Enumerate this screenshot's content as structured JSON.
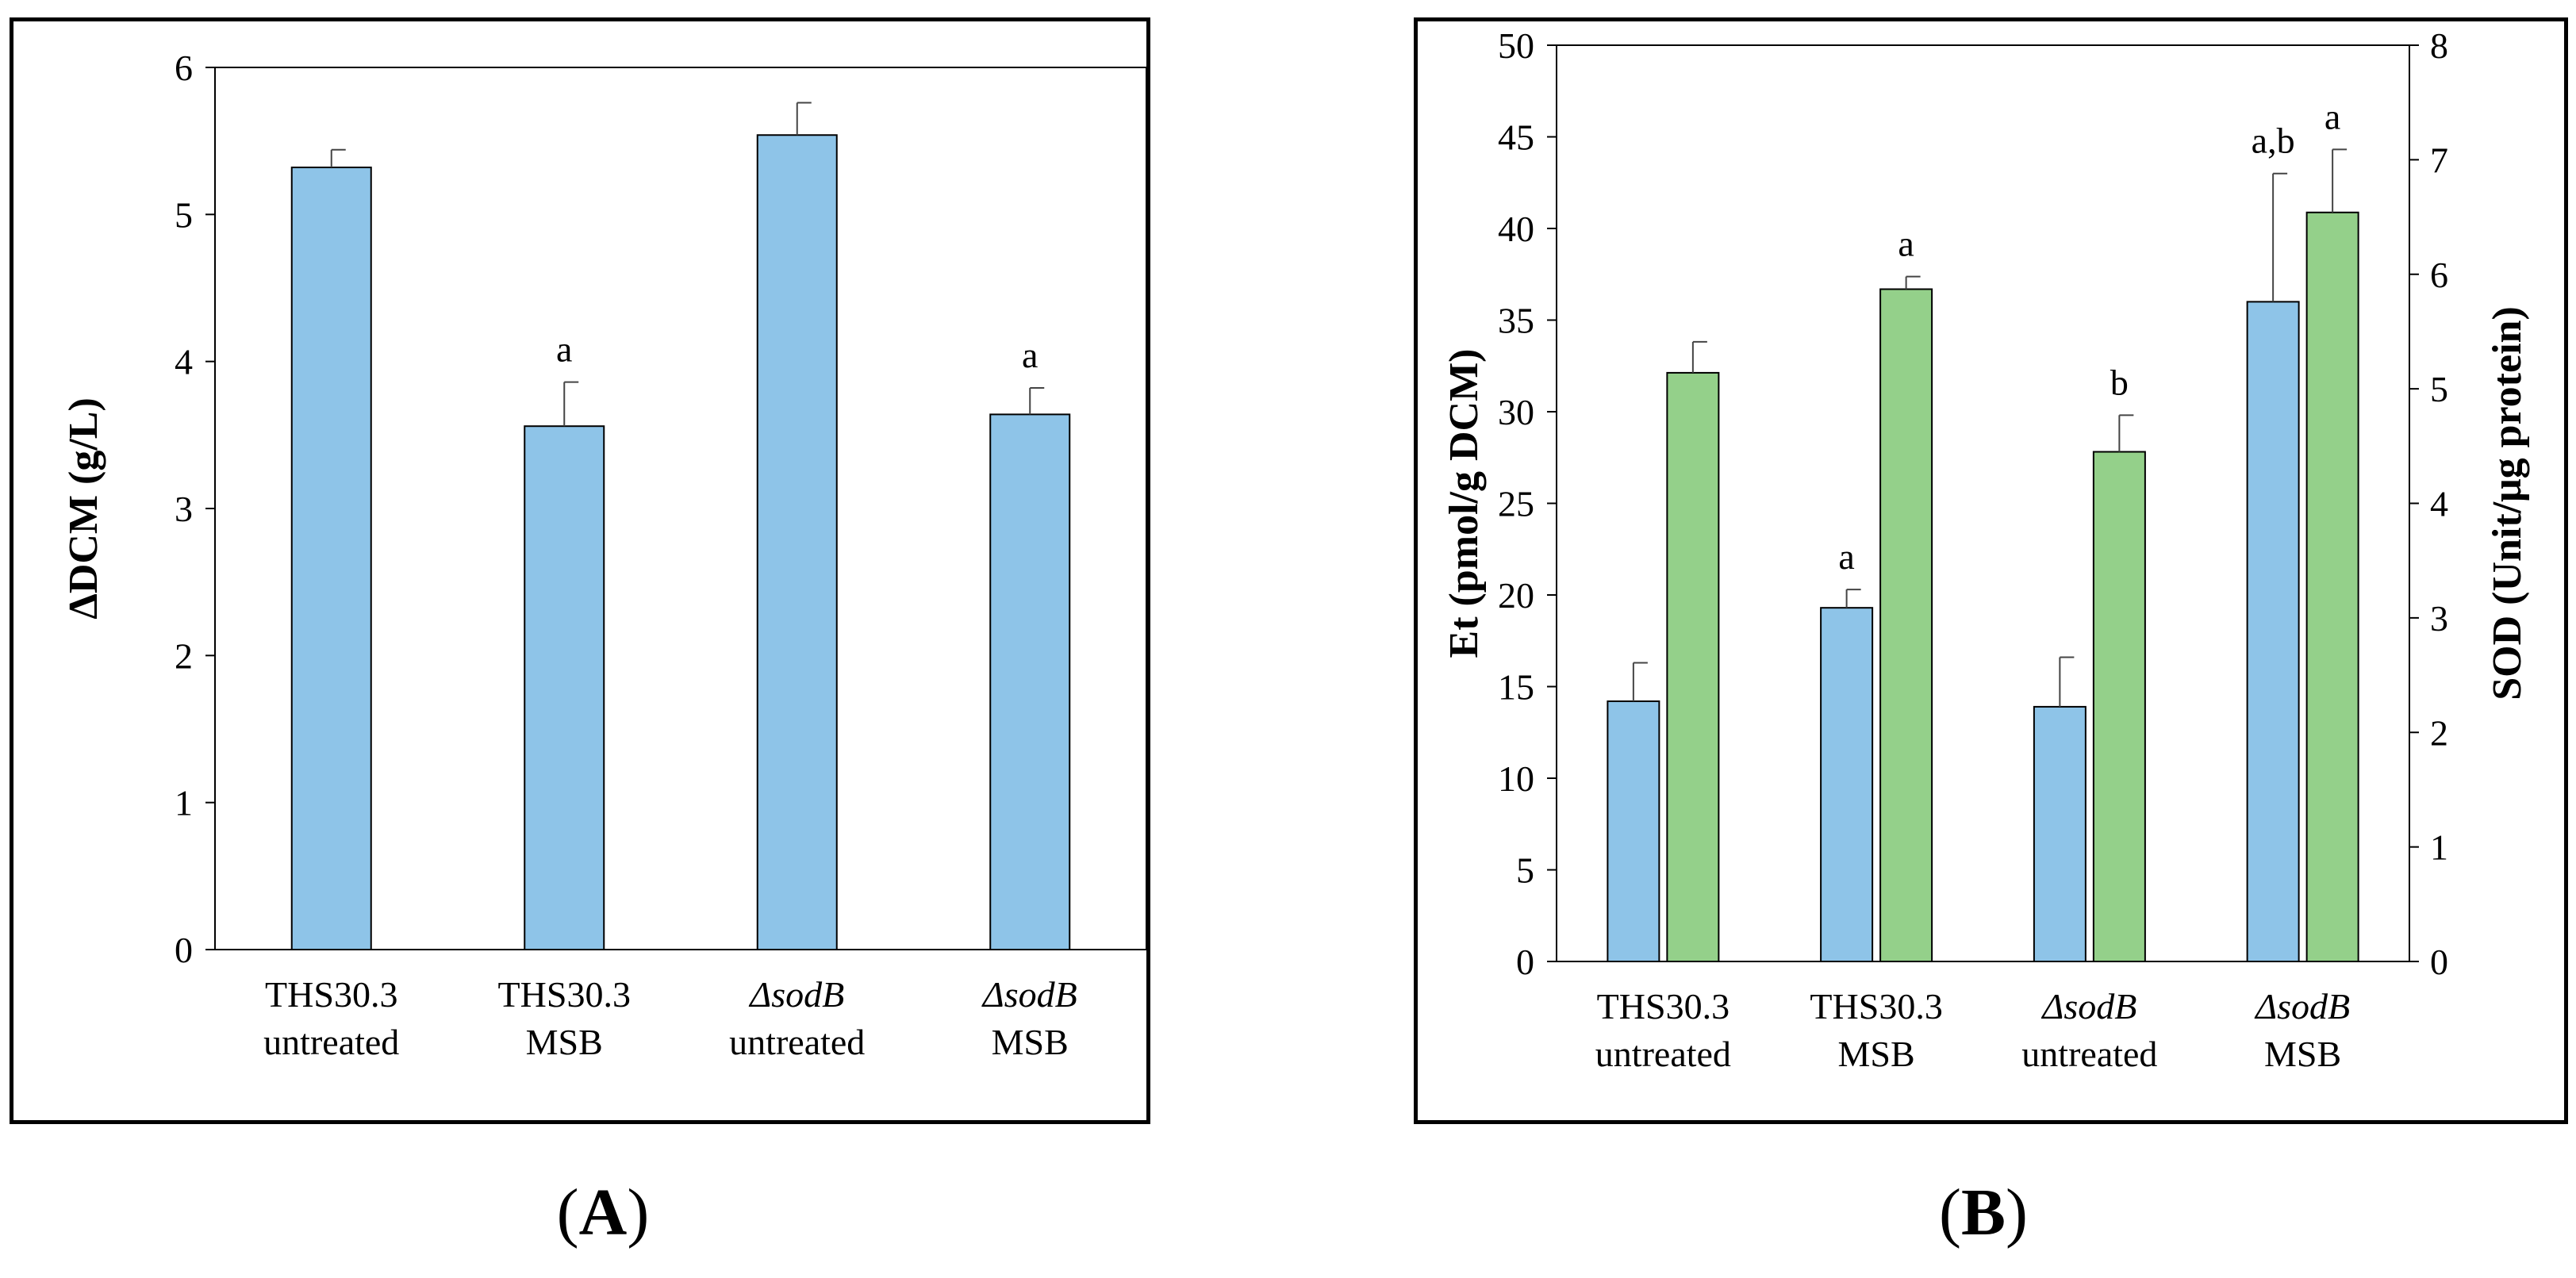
{
  "chart_data": [
    {
      "id": "A",
      "type": "bar",
      "panel_label": "A",
      "ylabel": "ΔDCM (g/L)",
      "ylim": [
        0,
        6
      ],
      "yticks": [
        "0",
        "1",
        "2",
        "3",
        "4",
        "5",
        "6"
      ],
      "categories": [
        {
          "line1": "THS30.3",
          "line2": "untreated",
          "italic": false
        },
        {
          "line1": "THS30.3",
          "line2": "MSB",
          "italic": false
        },
        {
          "line1": "ΔsodB",
          "line2": "untreated",
          "italic": true
        },
        {
          "line1": "ΔsodB",
          "line2": "MSB",
          "italic": true
        }
      ],
      "series": [
        {
          "name": "ΔDCM",
          "color": "#8ec4e8",
          "values": [
            5.32,
            3.56,
            5.54,
            3.64
          ],
          "errors": [
            0.12,
            0.3,
            0.22,
            0.18
          ],
          "annotations": [
            "",
            "a",
            "",
            "a"
          ]
        }
      ]
    },
    {
      "id": "B",
      "type": "bar",
      "panel_label": "B",
      "ylabel": "Et (pmol/g DCM)",
      "y2label": "SOD (Unit/μg protein)",
      "ylim": [
        0,
        50
      ],
      "y2lim": [
        0,
        8
      ],
      "yticks": [
        "0",
        "5",
        "10",
        "15",
        "20",
        "25",
        "30",
        "35",
        "40",
        "45",
        "50"
      ],
      "y2ticks": [
        "0",
        "1",
        "2",
        "3",
        "4",
        "5",
        "6",
        "7",
        "8"
      ],
      "categories": [
        {
          "line1": "THS30.3",
          "line2": "untreated",
          "italic": false
        },
        {
          "line1": "THS30.3",
          "line2": "MSB",
          "italic": false
        },
        {
          "line1": "ΔsodB",
          "line2": "untreated",
          "italic": true
        },
        {
          "line1": "ΔsodB",
          "line2": "MSB",
          "italic": true
        }
      ],
      "series": [
        {
          "name": "Et",
          "axis": "left",
          "color": "#8ec4e8",
          "values": [
            14.2,
            19.3,
            13.9,
            36.0
          ],
          "errors": [
            2.1,
            1.0,
            2.7,
            7.0
          ],
          "annotations": [
            "",
            "a",
            "",
            "a,b"
          ]
        },
        {
          "name": "SOD",
          "axis": "right",
          "color": "#94d08a",
          "values": [
            5.14,
            5.87,
            4.45,
            6.54
          ],
          "errors": [
            0.27,
            0.11,
            0.32,
            0.55
          ],
          "annotations": [
            "",
            "a",
            "b",
            "a"
          ]
        }
      ]
    }
  ]
}
